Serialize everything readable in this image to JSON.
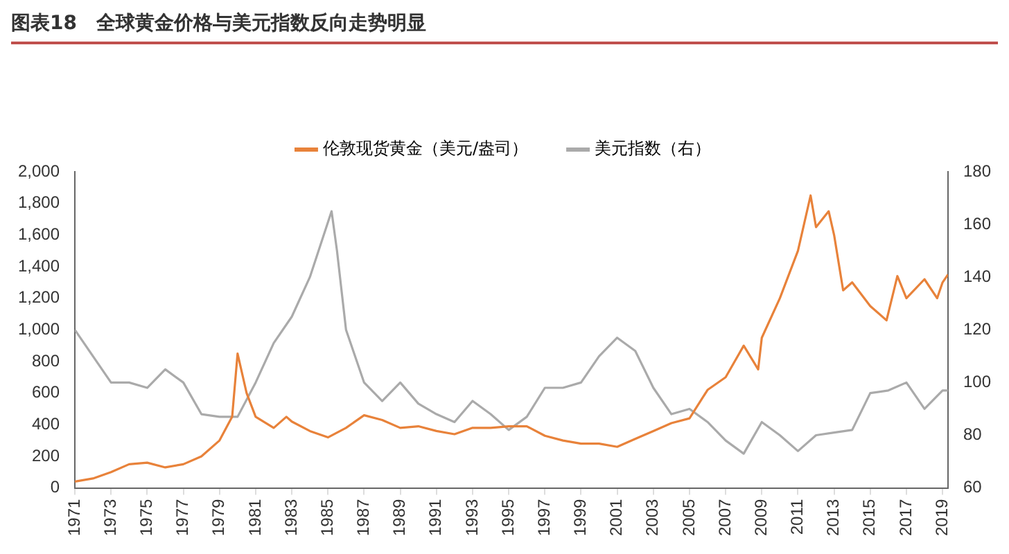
{
  "chart_data": {
    "type": "line",
    "title": "图表18　全球黄金价格与美元指数反向走势明显",
    "legend": "top",
    "marker": "none",
    "grid": false,
    "xlim": [
      1971,
      2019.3
    ],
    "xticks": [
      1971,
      1973,
      1975,
      1977,
      1979,
      1981,
      1983,
      1985,
      1987,
      1989,
      1991,
      1993,
      1995,
      1997,
      1999,
      2001,
      2003,
      2005,
      2007,
      2009,
      2011,
      2013,
      2015,
      2017,
      2019
    ],
    "ylim": [
      0,
      2000
    ],
    "yticks": [
      0,
      200,
      400,
      600,
      800,
      {
        "value": 1000,
        "label": "1,000"
      },
      {
        "value": 1200,
        "label": "1,200"
      },
      {
        "value": 1400,
        "label": "1,400"
      },
      {
        "value": 1600,
        "label": "1,600"
      },
      {
        "value": 1800,
        "label": "1,800"
      },
      {
        "value": 2000,
        "label": "2,000"
      }
    ],
    "y2lim": [
      60,
      180
    ],
    "y2ticks": [
      60,
      80,
      100,
      120,
      140,
      160,
      180
    ],
    "series": [
      {
        "name": "伦敦现货黄金（美元/盎司）",
        "color": "#e8823a",
        "x": [
          1971,
          1972,
          1973,
          1974,
          1975,
          1976,
          1977,
          1978,
          1979,
          1979.7,
          1980,
          1980.5,
          1981,
          1982,
          1982.7,
          1983,
          1984,
          1985,
          1986,
          1987,
          1988,
          1989,
          1990,
          1991,
          1992,
          1993,
          1994,
          1995,
          1996,
          1997,
          1998,
          1999,
          2000,
          2001,
          2002,
          2003,
          2004,
          2005,
          2006,
          2007,
          2008,
          2008.8,
          2009,
          2010,
          2011,
          2011.7,
          2012,
          2012.7,
          2013,
          2013.5,
          2014,
          2015,
          2015.9,
          2016.5,
          2017,
          2018,
          2018.7,
          2019,
          2019.3
        ],
        "values": [
          40,
          60,
          100,
          150,
          160,
          130,
          150,
          200,
          300,
          450,
          850,
          600,
          450,
          380,
          450,
          420,
          360,
          320,
          380,
          460,
          430,
          380,
          390,
          360,
          340,
          380,
          380,
          390,
          390,
          330,
          300,
          280,
          280,
          260,
          310,
          360,
          410,
          440,
          620,
          700,
          900,
          750,
          950,
          1200,
          1500,
          1850,
          1650,
          1750,
          1600,
          1250,
          1300,
          1150,
          1060,
          1340,
          1200,
          1320,
          1200,
          1300,
          1350
        ]
      },
      {
        "name": "美元指数（右）",
        "color": "#aaaaaa",
        "axis": "y2",
        "x": [
          1971,
          1972,
          1973,
          1974,
          1975,
          1976,
          1977,
          1978,
          1979,
          1980,
          1981,
          1982,
          1983,
          1984,
          1985.2,
          1985.5,
          1986,
          1987,
          1988,
          1989,
          1990,
          1991,
          1992,
          1993,
          1994,
          1995,
          1996,
          1997,
          1998,
          1999,
          2000,
          2001,
          2002,
          2003,
          2004,
          2005,
          2006,
          2007,
          2008,
          2009,
          2010,
          2011,
          2012,
          2013,
          2014,
          2015,
          2016,
          2017,
          2018,
          2019,
          2019.3
        ],
        "values": [
          120,
          110,
          100,
          100,
          98,
          105,
          100,
          88,
          87,
          87,
          100,
          115,
          125,
          140,
          165,
          150,
          120,
          100,
          93,
          100,
          92,
          88,
          85,
          93,
          88,
          82,
          87,
          98,
          98,
          100,
          110,
          117,
          112,
          98,
          88,
          90,
          85,
          78,
          73,
          85,
          80,
          74,
          80,
          81,
          82,
          96,
          97,
          100,
          90,
          97,
          97
        ]
      }
    ]
  }
}
